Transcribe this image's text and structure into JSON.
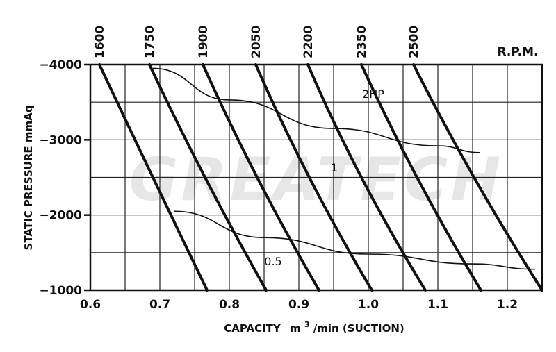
{
  "chart_data": {
    "type": "line",
    "title": "",
    "watermark": "GREATECH",
    "xlabel": "CAPACITY",
    "xlabel_unit": "m",
    "xlabel_unit_sup": "3",
    "xlabel_tail": "/min  (SUCTION)",
    "ylabel": "STATIC  PRESSURE  mmAq",
    "xlim": [
      0.6,
      1.25
    ],
    "ylim": [
      -1000,
      -4000
    ],
    "x_ticks": [
      "0.6",
      "0.7",
      "0.8",
      "0.9",
      "1.0",
      "1.1",
      "1.2"
    ],
    "x_tick_values": [
      0.6,
      0.7,
      0.8,
      0.9,
      1.0,
      1.1,
      1.2
    ],
    "y_ticks": [
      "−4000",
      "−3000",
      "−2000",
      "−1000"
    ],
    "y_tick_values": [
      -4000,
      -3000,
      -2000,
      -1000
    ],
    "rpm_label": "R.P.M.",
    "rpm_series": [
      {
        "name": "1600",
        "x": [
          0.613,
          0.69,
          0.768
        ],
        "y": [
          -4000,
          -2500,
          -1000
        ]
      },
      {
        "name": "1750",
        "x": [
          0.685,
          0.765,
          0.853
        ],
        "y": [
          -4000,
          -2500,
          -1000
        ]
      },
      {
        "name": "1900",
        "x": [
          0.762,
          0.84,
          0.929
        ],
        "y": [
          -4000,
          -2500,
          -1000
        ]
      },
      {
        "name": "2050",
        "x": [
          0.838,
          0.915,
          1.005
        ],
        "y": [
          -4000,
          -2500,
          -1000
        ]
      },
      {
        "name": "2200",
        "x": [
          0.913,
          0.99,
          1.082
        ],
        "y": [
          -4000,
          -2500,
          -1000
        ]
      },
      {
        "name": "2350",
        "x": [
          0.99,
          1.07,
          1.162
        ],
        "y": [
          -4000,
          -2500,
          -1000
        ]
      },
      {
        "name": "2500",
        "x": [
          1.065,
          1.152,
          1.25
        ],
        "y": [
          -4000,
          -2500,
          -1000
        ]
      }
    ],
    "power_series": [
      {
        "name": "2HP",
        "x": [
          0.69,
          0.8,
          0.95,
          1.1,
          1.16
        ],
        "y": [
          -3950,
          -3530,
          -3150,
          -2920,
          -2830
        ]
      },
      {
        "name": "1",
        "x": [
          0.72,
          0.85,
          1.0,
          1.15,
          1.24
        ],
        "y": [
          -2050,
          -1700,
          -1480,
          -1350,
          -1280
        ]
      },
      {
        "name": "0.5",
        "x": [],
        "y": []
      }
    ],
    "grid": true
  }
}
